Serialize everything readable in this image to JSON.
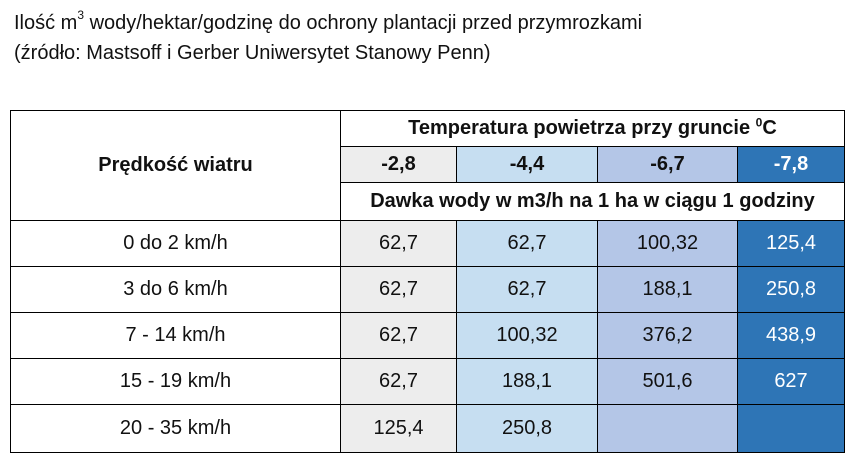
{
  "title": {
    "line1_pre": "Ilość m",
    "line1_sup": "3",
    "line1_post": " wody/hektar/godzinę do ochrony plantacji przed przymrozkami",
    "line2": "(źródło: Mastsoff i Gerber Uniwersytet Stanowy Penn)"
  },
  "table": {
    "row_header": "Prędkość wiatru",
    "temp_header_pre": "Temperatura powietrza przy gruncie ",
    "temp_header_sup": "0",
    "temp_header_post": "C",
    "temperatures": [
      "-2,8",
      "-4,4",
      "-6,7",
      "-7,8"
    ],
    "dose_header": "Dawka wody w m3/h na 1 ha w ciągu 1 godziny",
    "rows": [
      {
        "wind": "0  do 2 km/h",
        "values": [
          "62,7",
          "62,7",
          "100,32",
          "125,4"
        ]
      },
      {
        "wind": "3 do 6 km/h",
        "values": [
          "62,7",
          "62,7",
          "188,1",
          "250,8"
        ]
      },
      {
        "wind": "7 - 14 km/h",
        "values": [
          "62,7",
          "100,32",
          "376,2",
          "438,9"
        ]
      },
      {
        "wind": "15 - 19 km/h",
        "values": [
          "62,7",
          "188,1",
          "501,6",
          "627"
        ]
      },
      {
        "wind": "20 - 35 km/h",
        "values": [
          "125,4",
          "250,8",
          "",
          ""
        ]
      }
    ]
  },
  "colors": {
    "col1": "#ededed",
    "col2": "#c6def1",
    "col3": "#b4c6e7",
    "col4": "#2e75b6"
  }
}
